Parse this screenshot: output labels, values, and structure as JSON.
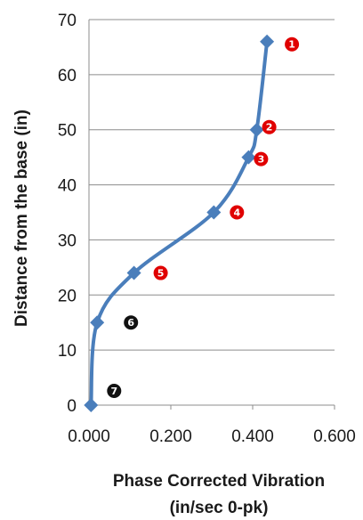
{
  "chart_data": {
    "type": "line",
    "xlabel_line1": "Phase Corrected Vibration",
    "xlabel_line2": "(in/sec 0-pk)",
    "ylabel": "Distance from the base (in)",
    "xlim": [
      0,
      0.6
    ],
    "ylim": [
      0,
      70
    ],
    "x_ticks": [
      "0.000",
      "0.200",
      "0.400",
      "0.600"
    ],
    "y_ticks": [
      "0",
      "10",
      "20",
      "30",
      "40",
      "50",
      "60",
      "70"
    ],
    "grid": "horizontal",
    "line_color": "#4a7ebb",
    "series": [
      {
        "points": [
          {
            "x": 0.435,
            "y": 66
          },
          {
            "x": 0.41,
            "y": 50
          },
          {
            "x": 0.39,
            "y": 45
          },
          {
            "x": 0.305,
            "y": 35
          },
          {
            "x": 0.11,
            "y": 24
          },
          {
            "x": 0.02,
            "y": 15
          },
          {
            "x": 0.005,
            "y": 0
          }
        ]
      }
    ],
    "annotations": [
      {
        "label": "1",
        "x": 0.435,
        "y": 66,
        "color": "#e00000"
      },
      {
        "label": "2",
        "x": 0.41,
        "y": 50,
        "color": "#e00000"
      },
      {
        "label": "3",
        "x": 0.39,
        "y": 45,
        "color": "#e00000"
      },
      {
        "label": "4",
        "x": 0.305,
        "y": 35,
        "color": "#e00000"
      },
      {
        "label": "5",
        "x": 0.11,
        "y": 24,
        "color": "#e00000"
      },
      {
        "label": "6",
        "x": 0.02,
        "y": 15,
        "color": "#111111"
      },
      {
        "label": "7",
        "x": 0.005,
        "y": 0,
        "color": "#111111"
      }
    ]
  }
}
